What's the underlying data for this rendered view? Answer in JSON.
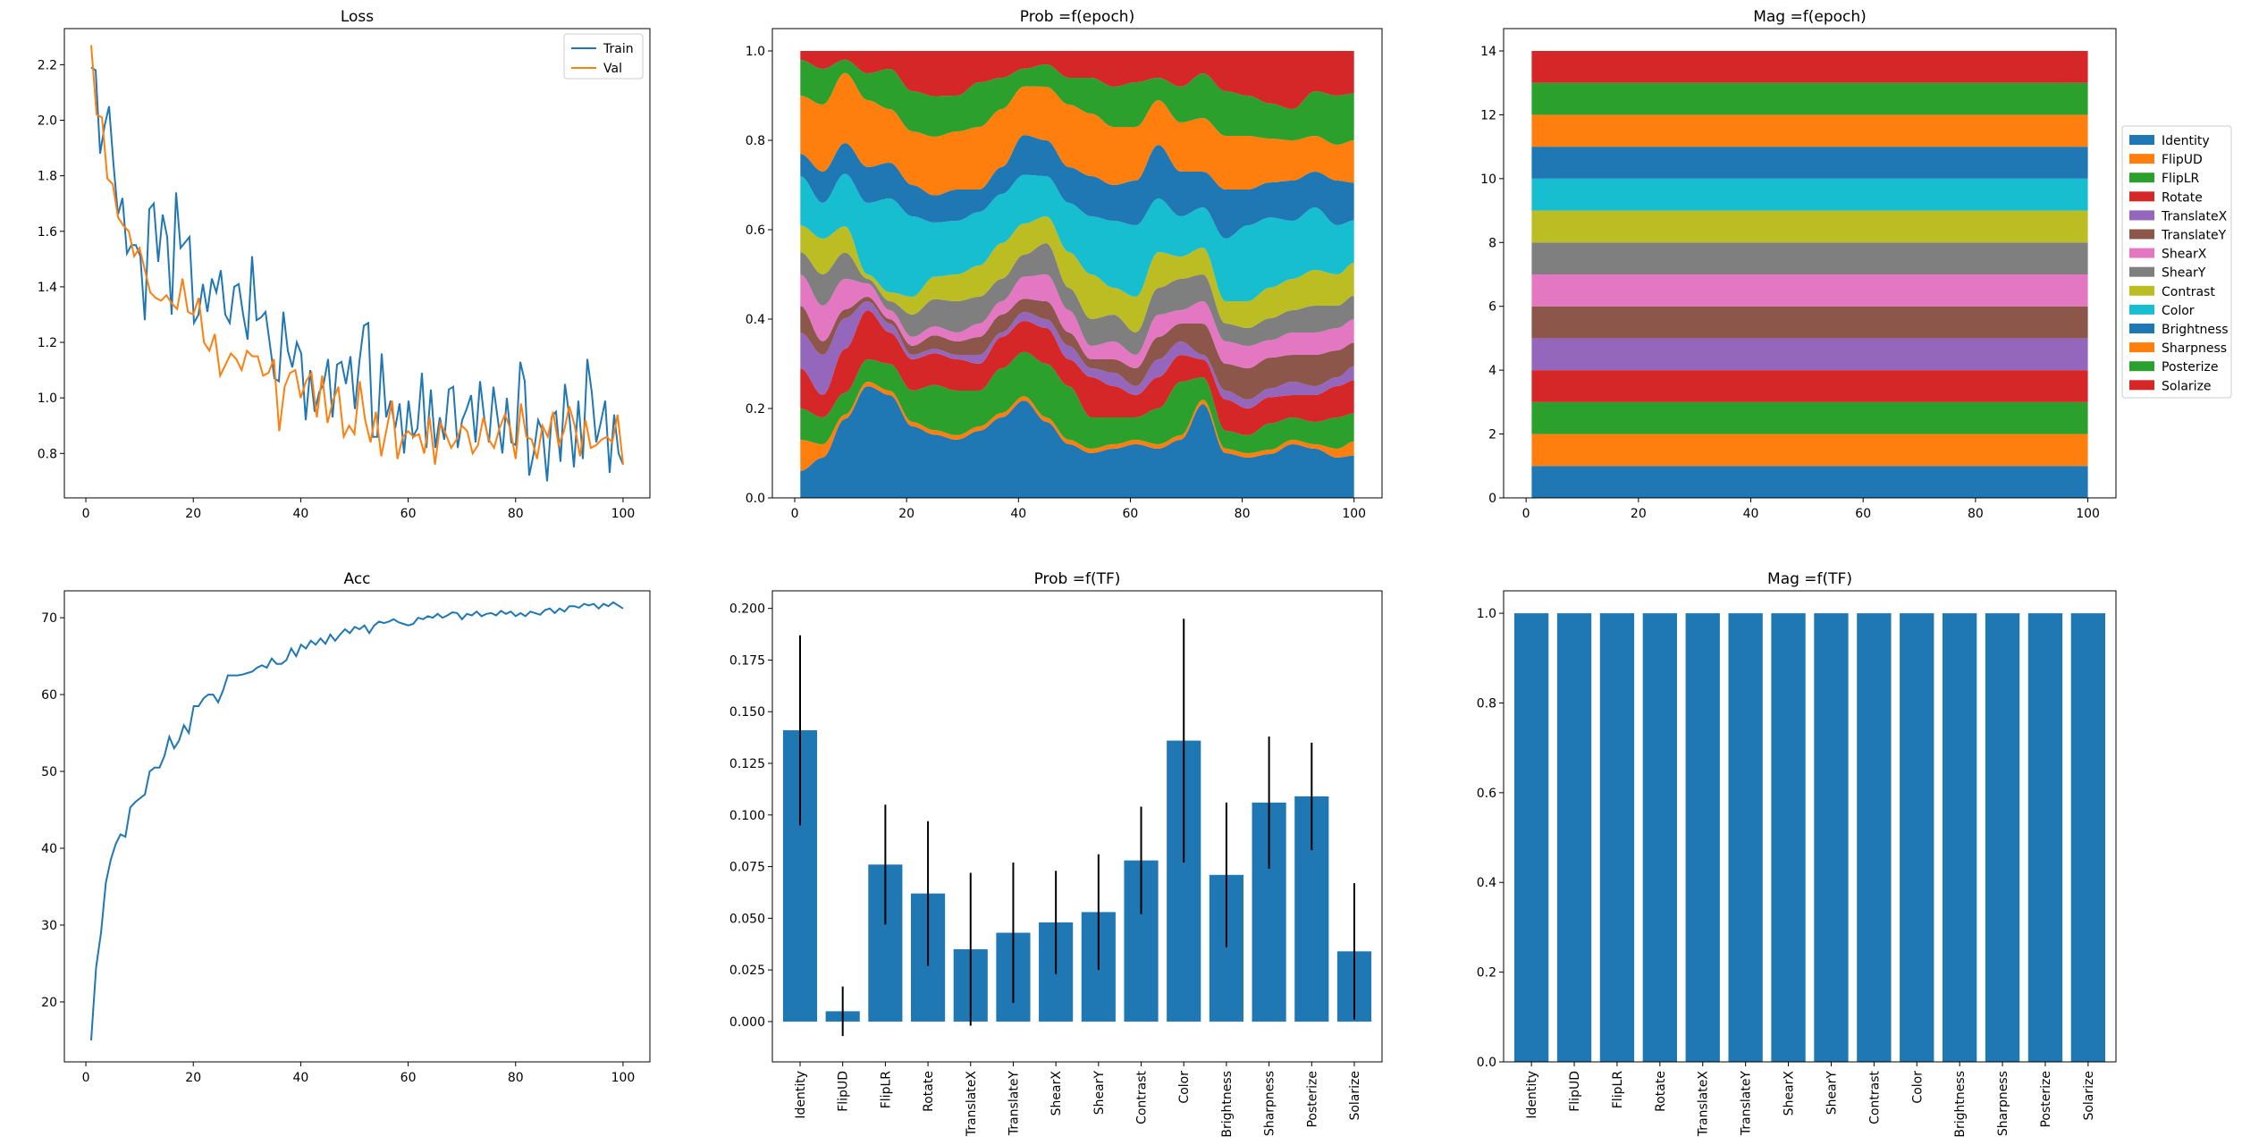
{
  "chart_data": [
    {
      "type": "line",
      "title": "Loss",
      "xlabel": "",
      "ylabel": "",
      "xlim": [
        -4,
        105
      ],
      "ylim": [
        0.64,
        2.33
      ],
      "xticks": [
        0,
        20,
        40,
        60,
        80,
        100
      ],
      "yticks": [
        0.8,
        1.0,
        1.2,
        1.4,
        1.6,
        1.8,
        2.0,
        2.2
      ],
      "legend": "top-right",
      "series": [
        {
          "name": "Train",
          "color": "#1f77b4",
          "x_start": 1,
          "values": [
            2.19,
            2.18,
            1.88,
            1.98,
            2.05,
            1.84,
            1.66,
            1.72,
            1.52,
            1.55,
            1.55,
            1.51,
            1.28,
            1.68,
            1.7,
            1.49,
            1.66,
            1.58,
            1.3,
            1.74,
            1.54,
            1.56,
            1.58,
            1.27,
            1.3,
            1.41,
            1.31,
            1.43,
            1.38,
            1.46,
            1.3,
            1.27,
            1.4,
            1.41,
            1.3,
            1.21,
            1.51,
            1.28,
            1.29,
            1.31,
            1.19,
            1.07,
            1.06,
            1.31,
            1.17,
            1.11,
            1.2,
            1.16,
            0.92,
            1.1,
            0.95,
            1.02,
            1.05,
            1.14,
            0.93,
            1.12,
            1.13,
            1.05,
            1.15,
            0.96,
            1.13,
            1.26,
            1.27,
            0.86,
            0.86,
            1.16,
            0.93,
            0.99,
            0.89,
            0.98,
            0.8,
            0.99,
            0.86,
            0.89,
            1.09,
            0.82,
            1.03,
            0.82,
            0.93,
            0.85,
            1.03,
            1.04,
            0.82,
            0.92,
            0.96,
            1.01,
            0.84,
            1.06,
            0.92,
            0.84,
            1.04,
            0.92,
            0.8,
            1.0,
            0.84,
            0.83,
            1.13,
            1.06,
            0.72,
            0.8,
            0.92,
            0.88,
            0.7,
            0.93,
            0.95,
            0.77,
            1.05,
            0.93,
            0.75,
            0.99,
            0.78,
            1.14,
            1.02,
            0.84,
            0.91,
            0.99,
            0.73,
            0.94,
            0.8,
            0.76
          ]
        },
        {
          "name": "Val",
          "color": "#ff7f0e",
          "x_start": 1,
          "values": [
            2.27,
            2.02,
            2.01,
            1.79,
            1.77,
            1.65,
            1.62,
            1.6,
            1.51,
            1.54,
            1.46,
            1.38,
            1.36,
            1.35,
            1.37,
            1.34,
            1.32,
            1.43,
            1.31,
            1.3,
            1.36,
            1.2,
            1.17,
            1.23,
            1.08,
            1.12,
            1.16,
            1.14,
            1.1,
            1.17,
            1.15,
            1.15,
            1.08,
            1.09,
            1.14,
            0.88,
            1.04,
            1.09,
            1.1,
            1.0,
            1.06,
            1.09,
            0.93,
            1.08,
            0.91,
            0.99,
            1.04,
            0.86,
            0.9,
            0.87,
            1.06,
            0.92,
            0.84,
            0.95,
            0.79,
            0.89,
            0.99,
            0.78,
            0.86,
            0.88,
            0.86,
            0.87,
            0.8,
            0.93,
            0.76,
            0.91,
            0.87,
            0.82,
            0.85,
            0.9,
            0.88,
            0.8,
            0.83,
            0.93,
            0.85,
            0.82,
            0.89,
            0.94,
            0.89,
            0.78,
            0.98,
            0.86,
            0.85,
            0.78,
            0.9,
            0.86,
            0.95,
            0.83,
            0.88,
            0.97,
            0.9,
            0.79,
            0.92,
            0.82,
            0.83,
            0.85,
            0.86,
            0.84,
            0.94,
            0.76
          ]
        }
      ]
    },
    {
      "type": "area",
      "title": "Prob =f(epoch)",
      "xlabel": "",
      "ylabel": "",
      "stacked": true,
      "xlim": [
        -4,
        105
      ],
      "ylim": [
        0,
        1.05
      ],
      "xticks": [
        0,
        20,
        40,
        60,
        80,
        100
      ],
      "yticks": [
        0.0,
        0.2,
        0.4,
        0.6,
        0.8,
        1.0
      ],
      "x_knots": [
        1,
        5,
        9,
        13,
        17,
        21,
        25,
        29,
        33,
        37,
        41,
        45,
        49,
        53,
        57,
        61,
        65,
        69,
        73,
        77,
        81,
        85,
        89,
        93,
        97,
        100
      ],
      "series": [
        {
          "name": "Identity",
          "values": [
            0.06,
            0.09,
            0.18,
            0.25,
            0.23,
            0.16,
            0.14,
            0.13,
            0.15,
            0.18,
            0.22,
            0.17,
            0.12,
            0.1,
            0.11,
            0.12,
            0.11,
            0.13,
            0.21,
            0.1,
            0.09,
            0.1,
            0.12,
            0.11,
            0.09,
            0.09
          ]
        },
        {
          "name": "FlipUD",
          "values": [
            0.07,
            0.03,
            0.01,
            0.01,
            0.01,
            0.01,
            0.01,
            0.01,
            0.01,
            0.01,
            0.01,
            0.01,
            0.01,
            0.01,
            0.01,
            0.01,
            0.01,
            0.01,
            0.01,
            0.01,
            0.01,
            0.01,
            0.01,
            0.01,
            0.02,
            0.03
          ]
        },
        {
          "name": "FlipLR",
          "values": [
            0.07,
            0.06,
            0.05,
            0.05,
            0.06,
            0.07,
            0.1,
            0.1,
            0.08,
            0.1,
            0.1,
            0.12,
            0.12,
            0.07,
            0.06,
            0.05,
            0.08,
            0.12,
            0.05,
            0.04,
            0.04,
            0.06,
            0.05,
            0.05,
            0.07,
            0.06
          ]
        },
        {
          "name": "Rotate",
          "values": [
            0.09,
            0.05,
            0.1,
            0.11,
            0.07,
            0.07,
            0.07,
            0.07,
            0.06,
            0.07,
            0.07,
            0.08,
            0.06,
            0.09,
            0.07,
            0.05,
            0.07,
            0.06,
            0.04,
            0.07,
            0.06,
            0.06,
            0.05,
            0.06,
            0.07,
            0.07
          ]
        },
        {
          "name": "TranslateX",
          "values": [
            0.08,
            0.09,
            0.07,
            0.02,
            0.02,
            0.01,
            0.01,
            0.01,
            0.02,
            0.01,
            0.02,
            0.02,
            0.03,
            0.02,
            0.03,
            0.02,
            0.04,
            0.03,
            0.01,
            0.02,
            0.02,
            0.02,
            0.03,
            0.02,
            0.02,
            0.03
          ]
        },
        {
          "name": "TranslateY",
          "values": [
            0.06,
            0.03,
            0.02,
            0.01,
            0.01,
            0.02,
            0.03,
            0.03,
            0.04,
            0.04,
            0.03,
            0.04,
            0.03,
            0.02,
            0.03,
            0.04,
            0.05,
            0.04,
            0.07,
            0.06,
            0.07,
            0.07,
            0.06,
            0.07,
            0.06,
            0.05
          ]
        },
        {
          "name": "ShearX",
          "values": [
            0.07,
            0.08,
            0.07,
            0.03,
            0.02,
            0.02,
            0.02,
            0.02,
            0.03,
            0.03,
            0.05,
            0.06,
            0.05,
            0.03,
            0.04,
            0.03,
            0.05,
            0.03,
            0.05,
            0.05,
            0.05,
            0.04,
            0.05,
            0.05,
            0.05,
            0.05
          ]
        },
        {
          "name": "ShearY",
          "values": [
            0.05,
            0.07,
            0.06,
            0.01,
            0.02,
            0.05,
            0.06,
            0.07,
            0.06,
            0.05,
            0.05,
            0.07,
            0.05,
            0.06,
            0.06,
            0.05,
            0.06,
            0.07,
            0.06,
            0.04,
            0.04,
            0.05,
            0.05,
            0.06,
            0.05,
            0.05
          ]
        },
        {
          "name": "Contrast",
          "values": [
            0.06,
            0.08,
            0.06,
            0.01,
            0.02,
            0.04,
            0.05,
            0.06,
            0.07,
            0.08,
            0.07,
            0.06,
            0.08,
            0.1,
            0.06,
            0.08,
            0.08,
            0.05,
            0.06,
            0.05,
            0.06,
            0.07,
            0.07,
            0.08,
            0.07,
            0.07
          ]
        },
        {
          "name": "Color",
          "values": [
            0.11,
            0.08,
            0.12,
            0.16,
            0.21,
            0.18,
            0.12,
            0.12,
            0.12,
            0.11,
            0.11,
            0.09,
            0.11,
            0.13,
            0.15,
            0.16,
            0.12,
            0.09,
            0.09,
            0.14,
            0.17,
            0.16,
            0.13,
            0.14,
            0.11,
            0.09
          ]
        },
        {
          "name": "Brightness",
          "values": [
            0.05,
            0.07,
            0.07,
            0.08,
            0.08,
            0.07,
            0.06,
            0.07,
            0.05,
            0.06,
            0.09,
            0.08,
            0.08,
            0.09,
            0.08,
            0.1,
            0.12,
            0.1,
            0.08,
            0.11,
            0.08,
            0.08,
            0.09,
            0.08,
            0.1,
            0.08
          ]
        },
        {
          "name": "Sharpness",
          "values": [
            0.13,
            0.15,
            0.16,
            0.15,
            0.12,
            0.12,
            0.13,
            0.13,
            0.14,
            0.13,
            0.11,
            0.12,
            0.14,
            0.14,
            0.13,
            0.12,
            0.1,
            0.11,
            0.12,
            0.12,
            0.12,
            0.1,
            0.09,
            0.08,
            0.08,
            0.09
          ]
        },
        {
          "name": "Posterize",
          "values": [
            0.08,
            0.08,
            0.03,
            0.06,
            0.09,
            0.09,
            0.09,
            0.08,
            0.1,
            0.07,
            0.04,
            0.05,
            0.06,
            0.08,
            0.09,
            0.1,
            0.05,
            0.08,
            0.1,
            0.1,
            0.09,
            0.08,
            0.07,
            0.1,
            0.11,
            0.1
          ]
        },
        {
          "name": "Solarize",
          "values": [
            0.02,
            0.04,
            0.02,
            0.05,
            0.04,
            0.09,
            0.1,
            0.1,
            0.07,
            0.06,
            0.04,
            0.03,
            0.06,
            0.06,
            0.08,
            0.07,
            0.06,
            0.08,
            0.05,
            0.09,
            0.1,
            0.12,
            0.13,
            0.09,
            0.1,
            0.09
          ]
        }
      ]
    },
    {
      "type": "bar",
      "title": "Mag =f(epoch)",
      "xlabel": "",
      "ylabel": "",
      "stacked": true,
      "xlim": [
        -4,
        105
      ],
      "ylim": [
        0,
        14.7
      ],
      "xticks": [
        0,
        20,
        40,
        60,
        80,
        100
      ],
      "yticks": [
        0,
        2,
        4,
        6,
        8,
        10,
        12,
        14
      ],
      "x_range": [
        1,
        100
      ],
      "legend": "right, outside",
      "series": [
        {
          "name": "Identity",
          "value": 1
        },
        {
          "name": "FlipUD",
          "value": 1
        },
        {
          "name": "FlipLR",
          "value": 1
        },
        {
          "name": "Rotate",
          "value": 1
        },
        {
          "name": "TranslateX",
          "value": 1
        },
        {
          "name": "TranslateY",
          "value": 1
        },
        {
          "name": "ShearX",
          "value": 1
        },
        {
          "name": "ShearY",
          "value": 1
        },
        {
          "name": "Contrast",
          "value": 1
        },
        {
          "name": "Color",
          "value": 1
        },
        {
          "name": "Brightness",
          "value": 1
        },
        {
          "name": "Sharpness",
          "value": 1
        },
        {
          "name": "Posterize",
          "value": 1
        },
        {
          "name": "Solarize",
          "value": 1
        }
      ]
    },
    {
      "type": "line",
      "title": "Acc",
      "xlabel": "",
      "ylabel": "",
      "xlim": [
        -4,
        105
      ],
      "ylim": [
        12.2,
        73.5
      ],
      "xticks": [
        0,
        20,
        40,
        60,
        80,
        100
      ],
      "yticks": [
        20,
        30,
        40,
        50,
        60,
        70
      ],
      "series": [
        {
          "name": "",
          "color": "#1f77b4",
          "x_start": 1,
          "values": [
            15.0,
            24.5,
            29.0,
            35.5,
            38.5,
            40.5,
            41.8,
            41.5,
            45.3,
            46.0,
            46.5,
            47.0,
            50.0,
            50.5,
            50.5,
            52.0,
            54.5,
            53.0,
            54.0,
            56.0,
            55.0,
            58.5,
            58.5,
            59.5,
            60.0,
            60.0,
            59.0,
            60.5,
            62.5,
            62.5,
            62.5,
            62.6,
            62.8,
            63.0,
            63.5,
            63.8,
            63.5,
            64.7,
            64.0,
            64.0,
            64.5,
            66.0,
            65.0,
            66.5,
            66.0,
            67.0,
            66.5,
            67.3,
            66.6,
            67.8,
            67.0,
            67.8,
            68.5,
            68.0,
            68.8,
            68.5,
            69.0,
            68.0,
            69.0,
            69.5,
            69.3,
            69.5,
            69.8,
            69.4,
            69.2,
            69.0,
            69.2,
            70.0,
            69.8,
            70.2,
            70.0,
            70.5,
            70.0,
            70.3,
            70.7,
            70.6,
            69.8,
            70.5,
            70.3,
            70.8,
            70.2,
            70.5,
            70.6,
            70.3,
            70.9,
            70.5,
            70.8,
            70.2,
            70.6,
            70.2,
            70.8,
            70.6,
            70.4,
            71.0,
            71.2,
            70.6,
            71.2,
            70.8,
            71.5,
            71.5,
            71.3,
            71.8,
            71.6,
            71.8,
            71.2,
            71.8,
            71.5,
            72.0,
            71.6,
            71.2
          ]
        }
      ]
    },
    {
      "type": "bar",
      "title": "Prob =f(TF)",
      "xlabel": "",
      "ylabel": "",
      "ylim": [
        -0.0195,
        0.2085
      ],
      "yticks": [
        0.0,
        0.025,
        0.05,
        0.075,
        0.1,
        0.125,
        0.15,
        0.175,
        0.2
      ],
      "ytick_labels": [
        "0.000",
        "0.025",
        "0.050",
        "0.075",
        "0.100",
        "0.125",
        "0.150",
        "0.175",
        "0.200"
      ],
      "categories": [
        "Identity",
        "FlipUD",
        "FlipLR",
        "Rotate",
        "TranslateX",
        "TranslateY",
        "ShearX",
        "ShearY",
        "Contrast",
        "Color",
        "Brightness",
        "Sharpness",
        "Posterize",
        "Solarize"
      ],
      "values": [
        0.141,
        0.005,
        0.076,
        0.062,
        0.035,
        0.043,
        0.048,
        0.053,
        0.078,
        0.136,
        0.071,
        0.106,
        0.109,
        0.034
      ],
      "error_bars": [
        0.046,
        0.012,
        0.029,
        0.035,
        0.037,
        0.034,
        0.025,
        0.028,
        0.026,
        0.059,
        0.035,
        0.032,
        0.026,
        0.033
      ],
      "color": "#1f77b4"
    },
    {
      "type": "bar",
      "title": "Mag =f(TF)",
      "xlabel": "",
      "ylabel": "",
      "ylim": [
        0,
        1.05
      ],
      "yticks": [
        0.0,
        0.2,
        0.4,
        0.6,
        0.8,
        1.0
      ],
      "categories": [
        "Identity",
        "FlipUD",
        "FlipLR",
        "Rotate",
        "TranslateX",
        "TranslateY",
        "ShearX",
        "ShearY",
        "Contrast",
        "Color",
        "Brightness",
        "Sharpness",
        "Posterize",
        "Solarize"
      ],
      "values": [
        1,
        1,
        1,
        1,
        1,
        1,
        1,
        1,
        1,
        1,
        1,
        1,
        1,
        1
      ],
      "color": "#1f77b4"
    }
  ],
  "colors": {
    "palette": [
      "#1f77b4",
      "#ff7f0e",
      "#2ca02c",
      "#d62728",
      "#9467bd",
      "#8c564b",
      "#e377c2",
      "#7f7f7f",
      "#bcbd22",
      "#17becf",
      "#1f77b4",
      "#ff7f0e",
      "#2ca02c",
      "#d62728"
    ]
  }
}
